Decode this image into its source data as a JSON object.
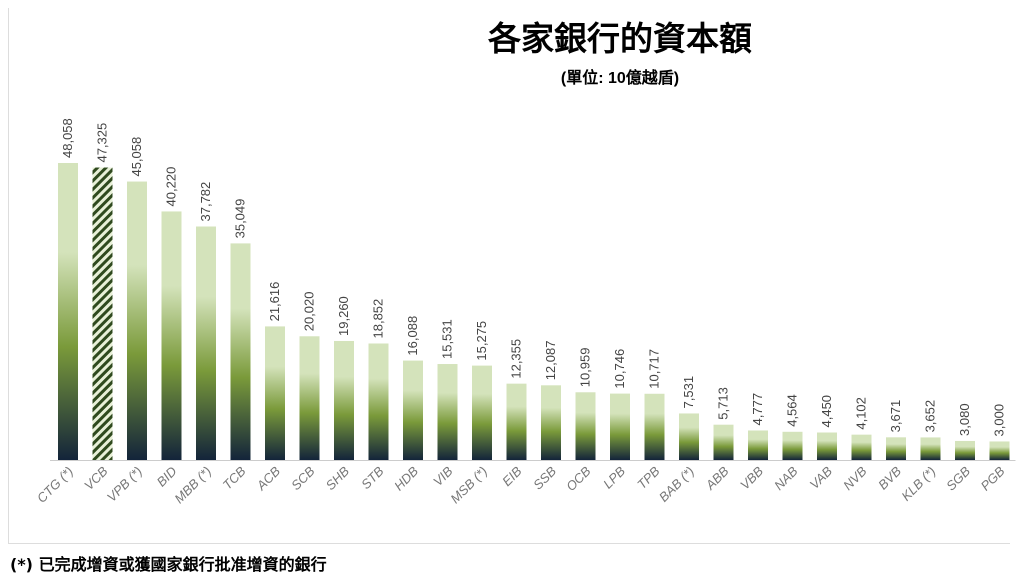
{
  "chart_data": {
    "type": "bar",
    "title": "各家銀行的資本額",
    "subtitle": "(單位: 10億越盾)",
    "footnote": "(*) 已完成增資或獲國家銀行批准增資的銀行",
    "categories": [
      "CTG (*)",
      "VCB",
      "VPB (*)",
      "BID",
      "MBB (*)",
      "TCB",
      "ACB",
      "SCB",
      "SHB",
      "STB",
      "HDB",
      "VIB",
      "MSB (*)",
      "EIB",
      "SSB",
      "OCB",
      "LPB",
      "TPB",
      "BAB (*)",
      "ABB",
      "VBB",
      "NAB",
      "VAB",
      "NVB",
      "BVB",
      "KLB (*)",
      "SGB",
      "PGB"
    ],
    "values": [
      48058,
      47325,
      45058,
      40220,
      37782,
      35049,
      21616,
      20020,
      19260,
      18852,
      16088,
      15531,
      15275,
      12355,
      12087,
      10959,
      10746,
      10717,
      7531,
      5713,
      4777,
      4564,
      4450,
      4102,
      3671,
      3652,
      3080,
      3000
    ],
    "value_labels": [
      "48,058",
      "47,325",
      "45,058",
      "40,220",
      "37,782",
      "35,049",
      "21,616",
      "20,020",
      "19,260",
      "18,852",
      "16,088",
      "15,531",
      "15,275",
      "12,355",
      "12,087",
      "10,959",
      "10,746",
      "10,717",
      "7,531",
      "5,713",
      "4,777",
      "4,564",
      "4,450",
      "4,102",
      "3,671",
      "3,652",
      "3,080",
      "3,000"
    ],
    "hatched_categories": [
      "VCB"
    ],
    "ylim": [
      0,
      48058
    ],
    "grid": false,
    "legend": "none",
    "colors": {
      "gradient_top": "#d4e3bb",
      "gradient_mid": "#7a9a3a",
      "gradient_bottom": "#13243a",
      "hatch": "#2f4a1e",
      "axis": "#cccccc"
    }
  }
}
